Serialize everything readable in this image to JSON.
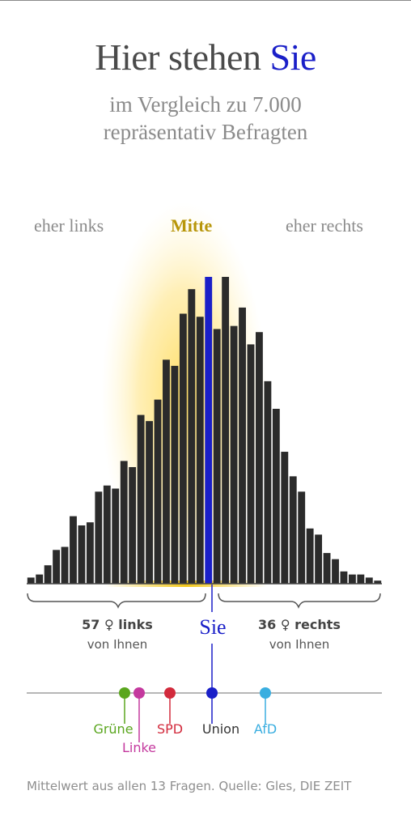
{
  "header": {
    "title_main": "Hier stehen ",
    "title_highlight": "Sie",
    "subtitle_line1": "im Vergleich zu 7.000",
    "subtitle_line2": "repräsentativ Befragten"
  },
  "categories": {
    "left": "eher links",
    "middle": "Mitte",
    "right": "eher rechts"
  },
  "summary": {
    "left_count": "57 ♀ links",
    "left_sub": "von Ihnen",
    "right_count": "36 ♀ rechts",
    "right_sub": "von Ihnen",
    "you_label": "Sie"
  },
  "colors": {
    "bars": "#2b2b2b",
    "you": "#1a1fc8",
    "glow": "#ffd84a"
  },
  "chart_data": {
    "type": "bar",
    "title": "Hier stehen Sie",
    "values": [
      2,
      3,
      6,
      11,
      12,
      22,
      19,
      20,
      30,
      32,
      31,
      40,
      38,
      55,
      53,
      60,
      73,
      71,
      88,
      96,
      87,
      100,
      83,
      100,
      84,
      90,
      78,
      82,
      66,
      57,
      43,
      35,
      30,
      18,
      16,
      10,
      8,
      4,
      3,
      3,
      2,
      1
    ],
    "you_index": 21,
    "ylim": [
      0,
      100
    ]
  },
  "parties": [
    {
      "name": "Grüne",
      "color": "#5aa61e"
    },
    {
      "name": "Linke",
      "color": "#c4399e"
    },
    {
      "name": "SPD",
      "color": "#d22a3c"
    },
    {
      "name": "Union",
      "color": "#1a1fc8"
    },
    {
      "name": "AfD",
      "color": "#3aaee0"
    }
  ],
  "footer": "Mittelwert aus allen 13 Fragen. Quelle: Gles, DIE ZEIT"
}
